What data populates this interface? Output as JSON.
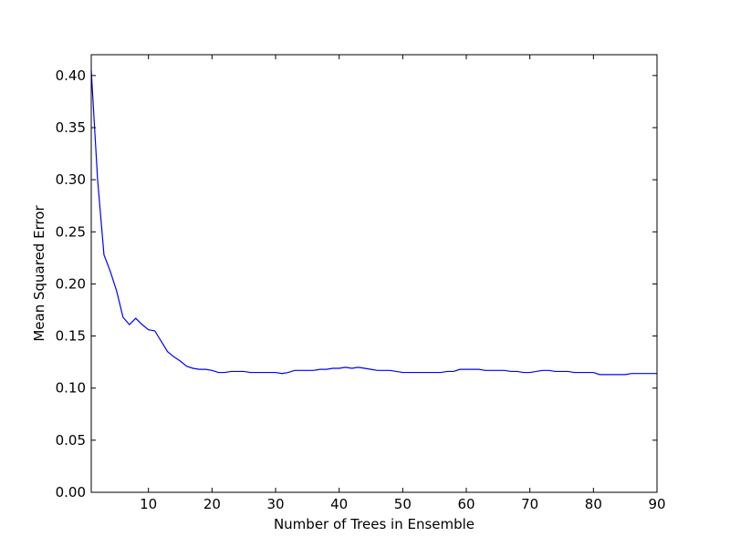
{
  "chart_data": {
    "type": "line",
    "title": "",
    "xlabel": "Number of Trees in Ensemble",
    "ylabel": "Mean Squared Error",
    "xlim": [
      1,
      90
    ],
    "ylim": [
      0,
      0.42
    ],
    "x_ticks": [
      10,
      20,
      30,
      40,
      50,
      60,
      70,
      80,
      90
    ],
    "x_tick_labels": [
      "10",
      "20",
      "30",
      "40",
      "50",
      "60",
      "70",
      "80",
      "90"
    ],
    "y_ticks": [
      0,
      0.05,
      0.1,
      0.15,
      0.2,
      0.25,
      0.3,
      0.35,
      0.4
    ],
    "y_tick_labels": [
      "0.00",
      "0.05",
      "0.10",
      "0.15",
      "0.20",
      "0.25",
      "0.30",
      "0.35",
      "0.40"
    ],
    "grid": false,
    "line_color": "#0000ff",
    "series": [
      {
        "x": [
          1,
          2,
          3,
          4,
          5,
          6,
          7,
          8,
          9,
          10,
          11,
          12,
          13,
          14,
          15,
          16,
          17,
          18,
          19,
          20,
          21,
          22,
          23,
          24,
          25,
          26,
          27,
          28,
          29,
          30,
          31,
          32,
          33,
          34,
          35,
          36,
          37,
          38,
          39,
          40,
          41,
          42,
          43,
          44,
          45,
          46,
          47,
          48,
          49,
          50,
          51,
          52,
          53,
          54,
          55,
          56,
          57,
          58,
          59,
          60,
          61,
          62,
          63,
          64,
          65,
          66,
          67,
          68,
          69,
          70,
          71,
          72,
          73,
          74,
          75,
          76,
          77,
          78,
          79,
          80,
          81,
          82,
          83,
          84,
          85,
          86,
          87,
          88,
          89,
          90
        ],
        "values": [
          0.405,
          0.3,
          0.228,
          0.212,
          0.193,
          0.168,
          0.161,
          0.167,
          0.161,
          0.156,
          0.155,
          0.145,
          0.135,
          0.13,
          0.126,
          0.121,
          0.119,
          0.118,
          0.118,
          0.117,
          0.115,
          0.115,
          0.116,
          0.116,
          0.116,
          0.115,
          0.115,
          0.115,
          0.115,
          0.115,
          0.114,
          0.115,
          0.117,
          0.117,
          0.117,
          0.117,
          0.118,
          0.118,
          0.119,
          0.119,
          0.12,
          0.119,
          0.12,
          0.119,
          0.118,
          0.117,
          0.117,
          0.117,
          0.116,
          0.115,
          0.115,
          0.115,
          0.115,
          0.115,
          0.115,
          0.115,
          0.116,
          0.116,
          0.118,
          0.118,
          0.118,
          0.118,
          0.117,
          0.117,
          0.117,
          0.117,
          0.116,
          0.116,
          0.115,
          0.115,
          0.116,
          0.117,
          0.117,
          0.116,
          0.116,
          0.116,
          0.115,
          0.115,
          0.115,
          0.115,
          0.113,
          0.113,
          0.113,
          0.113,
          0.113,
          0.114,
          0.114,
          0.114,
          0.114,
          0.114
        ]
      }
    ]
  }
}
